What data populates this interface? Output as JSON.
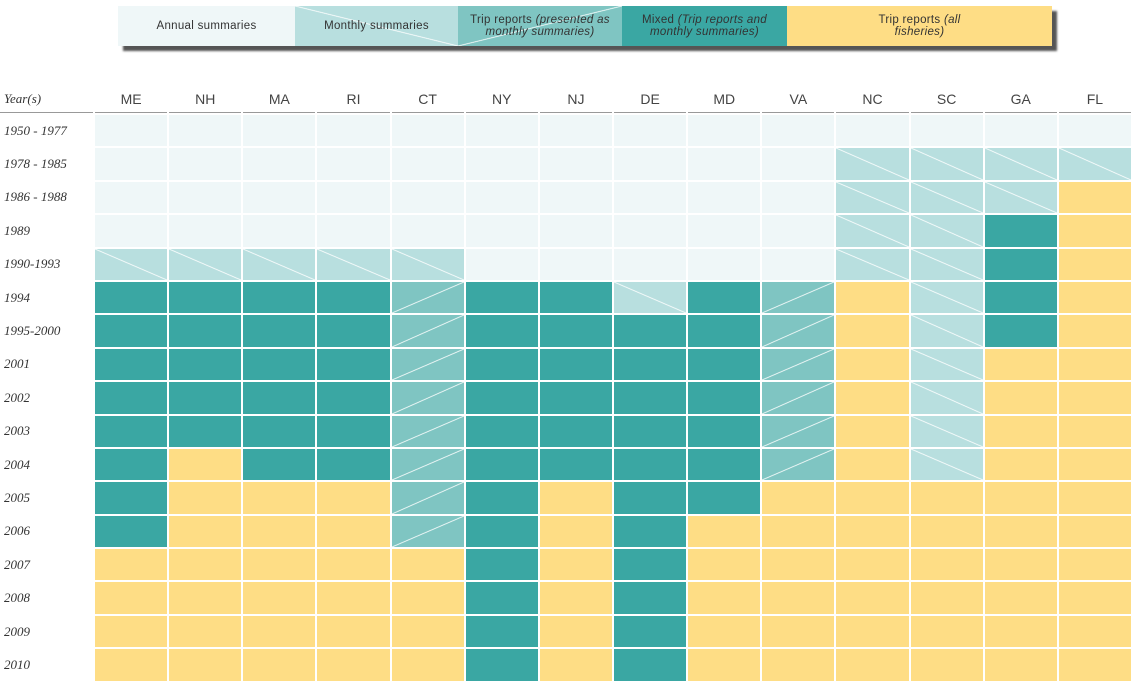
{
  "legend": [
    {
      "text": "Annual summaries"
    },
    {
      "text": "Monthly summaries"
    },
    {
      "text": "Trip reports",
      "note": "(presented as monthly summaries)"
    },
    {
      "text": "Mixed",
      "note": "(Trip reports and monthly summaries)"
    },
    {
      "text": "Trip reports",
      "note": "(all fisheries)"
    }
  ],
  "table": {
    "header": [
      "Year(s)",
      "ME",
      "NH",
      "MA",
      "RI",
      "CT",
      "NY",
      "NJ",
      "DE",
      "MD",
      "VA",
      "NC",
      "SC",
      "GA",
      "FL"
    ],
    "rows": [
      {
        "label": "1950 - 1977",
        "cells": [
          0,
          0,
          0,
          0,
          0,
          0,
          0,
          0,
          0,
          0,
          0,
          0,
          0,
          0
        ]
      },
      {
        "label": "1978 - 1985",
        "cells": [
          0,
          0,
          0,
          0,
          0,
          0,
          0,
          0,
          0,
          0,
          1,
          1,
          1,
          1
        ]
      },
      {
        "label": "1986 - 1988",
        "cells": [
          0,
          0,
          0,
          0,
          0,
          0,
          0,
          0,
          0,
          0,
          1,
          1,
          1,
          4
        ]
      },
      {
        "label": "1989",
        "cells": [
          0,
          0,
          0,
          0,
          0,
          0,
          0,
          0,
          0,
          0,
          1,
          1,
          3,
          4
        ]
      },
      {
        "label": "1990-1993",
        "cells": [
          1,
          1,
          1,
          1,
          1,
          0,
          0,
          0,
          0,
          0,
          1,
          1,
          3,
          4
        ]
      },
      {
        "label": "1994",
        "cells": [
          3,
          3,
          3,
          3,
          2,
          3,
          3,
          1,
          3,
          2,
          4,
          1,
          3,
          4
        ]
      },
      {
        "label": "1995-2000",
        "cells": [
          3,
          3,
          3,
          3,
          2,
          3,
          3,
          3,
          3,
          2,
          4,
          1,
          3,
          4
        ]
      },
      {
        "label": "2001",
        "cells": [
          3,
          3,
          3,
          3,
          2,
          3,
          3,
          3,
          3,
          2,
          4,
          1,
          4,
          4
        ]
      },
      {
        "label": "2002",
        "cells": [
          3,
          3,
          3,
          3,
          2,
          3,
          3,
          3,
          3,
          2,
          4,
          1,
          4,
          4
        ]
      },
      {
        "label": "2003",
        "cells": [
          3,
          3,
          3,
          3,
          2,
          3,
          3,
          3,
          3,
          2,
          4,
          1,
          4,
          4
        ]
      },
      {
        "label": "2004",
        "cells": [
          3,
          4,
          3,
          3,
          2,
          3,
          3,
          3,
          3,
          2,
          4,
          1,
          4,
          4
        ]
      },
      {
        "label": "2005",
        "cells": [
          3,
          4,
          4,
          4,
          2,
          3,
          4,
          3,
          3,
          4,
          4,
          4,
          4,
          4
        ]
      },
      {
        "label": "2006",
        "cells": [
          3,
          4,
          4,
          4,
          2,
          3,
          4,
          3,
          4,
          4,
          4,
          4,
          4,
          4
        ]
      },
      {
        "label": "2007",
        "cells": [
          4,
          4,
          4,
          4,
          4,
          3,
          4,
          3,
          4,
          4,
          4,
          4,
          4,
          4
        ]
      },
      {
        "label": "2008",
        "cells": [
          4,
          4,
          4,
          4,
          4,
          3,
          4,
          3,
          4,
          4,
          4,
          4,
          4,
          4
        ]
      },
      {
        "label": "2009",
        "cells": [
          4,
          4,
          4,
          4,
          4,
          3,
          4,
          3,
          4,
          4,
          4,
          4,
          4,
          4
        ]
      },
      {
        "label": "2010",
        "cells": [
          4,
          4,
          4,
          4,
          4,
          3,
          4,
          3,
          4,
          4,
          4,
          4,
          4,
          4
        ]
      }
    ]
  }
}
